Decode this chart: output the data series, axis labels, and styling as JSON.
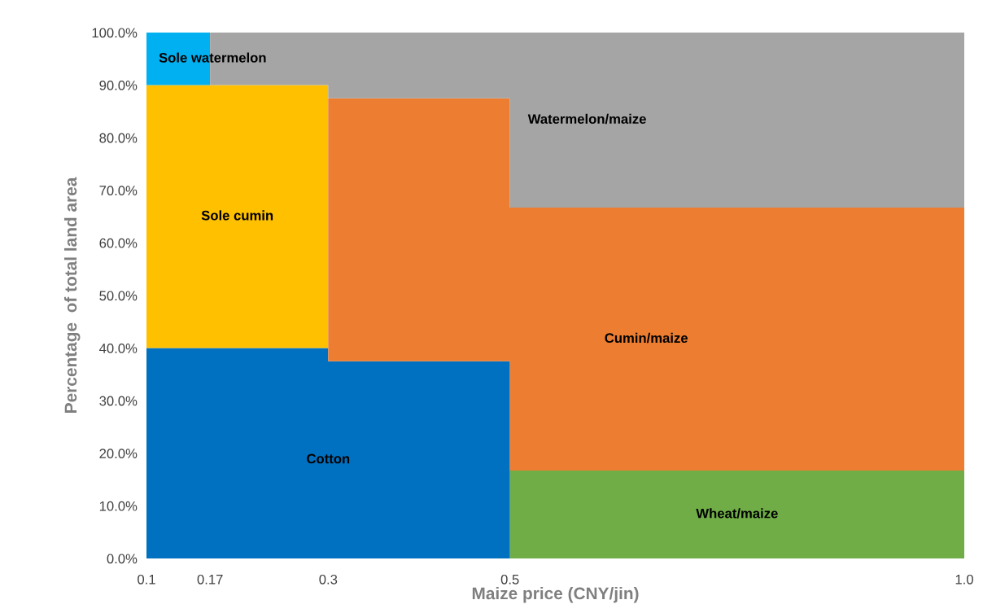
{
  "chart_data": {
    "type": "area",
    "stacked": true,
    "xlabel": "Maize price (CNY/jin)",
    "ylabel": "Percentage  of total land area",
    "x": [
      0.1,
      0.17,
      0.17,
      0.3,
      0.3,
      0.5,
      0.5,
      1.0
    ],
    "xlim": [
      0.1,
      1.0
    ],
    "xticks": [
      0.1,
      0.17,
      0.3,
      0.5,
      {
        "value": 1.0,
        "label": "1.0"
      }
    ],
    "ylim": [
      0,
      100
    ],
    "yticks": [
      {
        "value": 0,
        "label": "0.0%"
      },
      {
        "value": 10,
        "label": "10.0%"
      },
      {
        "value": 20,
        "label": "20.0%"
      },
      {
        "value": 30,
        "label": "30.0%"
      },
      {
        "value": 40,
        "label": "40.0%"
      },
      {
        "value": 50,
        "label": "50.0%"
      },
      {
        "value": 60,
        "label": "60.0%"
      },
      {
        "value": 70,
        "label": "70.0%"
      },
      {
        "value": 80,
        "label": "80.0%"
      },
      {
        "value": 90,
        "label": "90.0%"
      },
      {
        "value": 100,
        "label": "100.0%"
      }
    ],
    "grid": false,
    "legend": false,
    "series": [
      {
        "name": "Wheat/maize",
        "color": "#70ad47",
        "values": [
          null,
          null,
          null,
          null,
          null,
          null,
          16.7,
          16.7
        ]
      },
      {
        "name": "Cotton",
        "color": "#0070c0",
        "values": [
          40,
          40,
          40,
          40,
          37.5,
          37.5,
          null,
          null
        ]
      },
      {
        "name": "Sole cumin",
        "color": "#ffc000",
        "values": [
          50,
          50,
          50,
          50,
          null,
          null,
          null,
          null
        ]
      },
      {
        "name": "Cumin/maize",
        "color": "#ed7d31",
        "values": [
          null,
          null,
          null,
          null,
          50,
          50,
          50,
          50
        ]
      },
      {
        "name": "Sole watermelon",
        "color": "#00b0f0",
        "values": [
          10,
          10,
          null,
          null,
          null,
          null,
          null,
          null
        ]
      },
      {
        "name": "Watermelon/maize",
        "color": "#a5a5a5",
        "values": [
          null,
          null,
          10,
          10,
          12.5,
          12.5,
          33.3,
          33.3
        ]
      }
    ]
  }
}
